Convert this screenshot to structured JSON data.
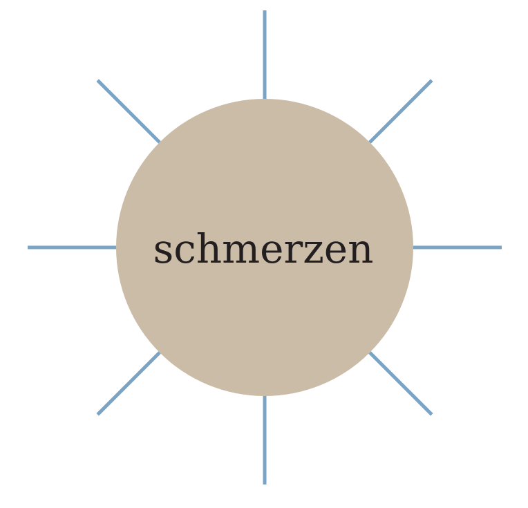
{
  "diagram": {
    "center_word": "schmerzen",
    "ray_count": 8,
    "colors": {
      "background": "#ffffff",
      "circle_fill": "#cbbca8",
      "ray_stroke": "#7aa3c4",
      "text": "#231f20"
    }
  }
}
